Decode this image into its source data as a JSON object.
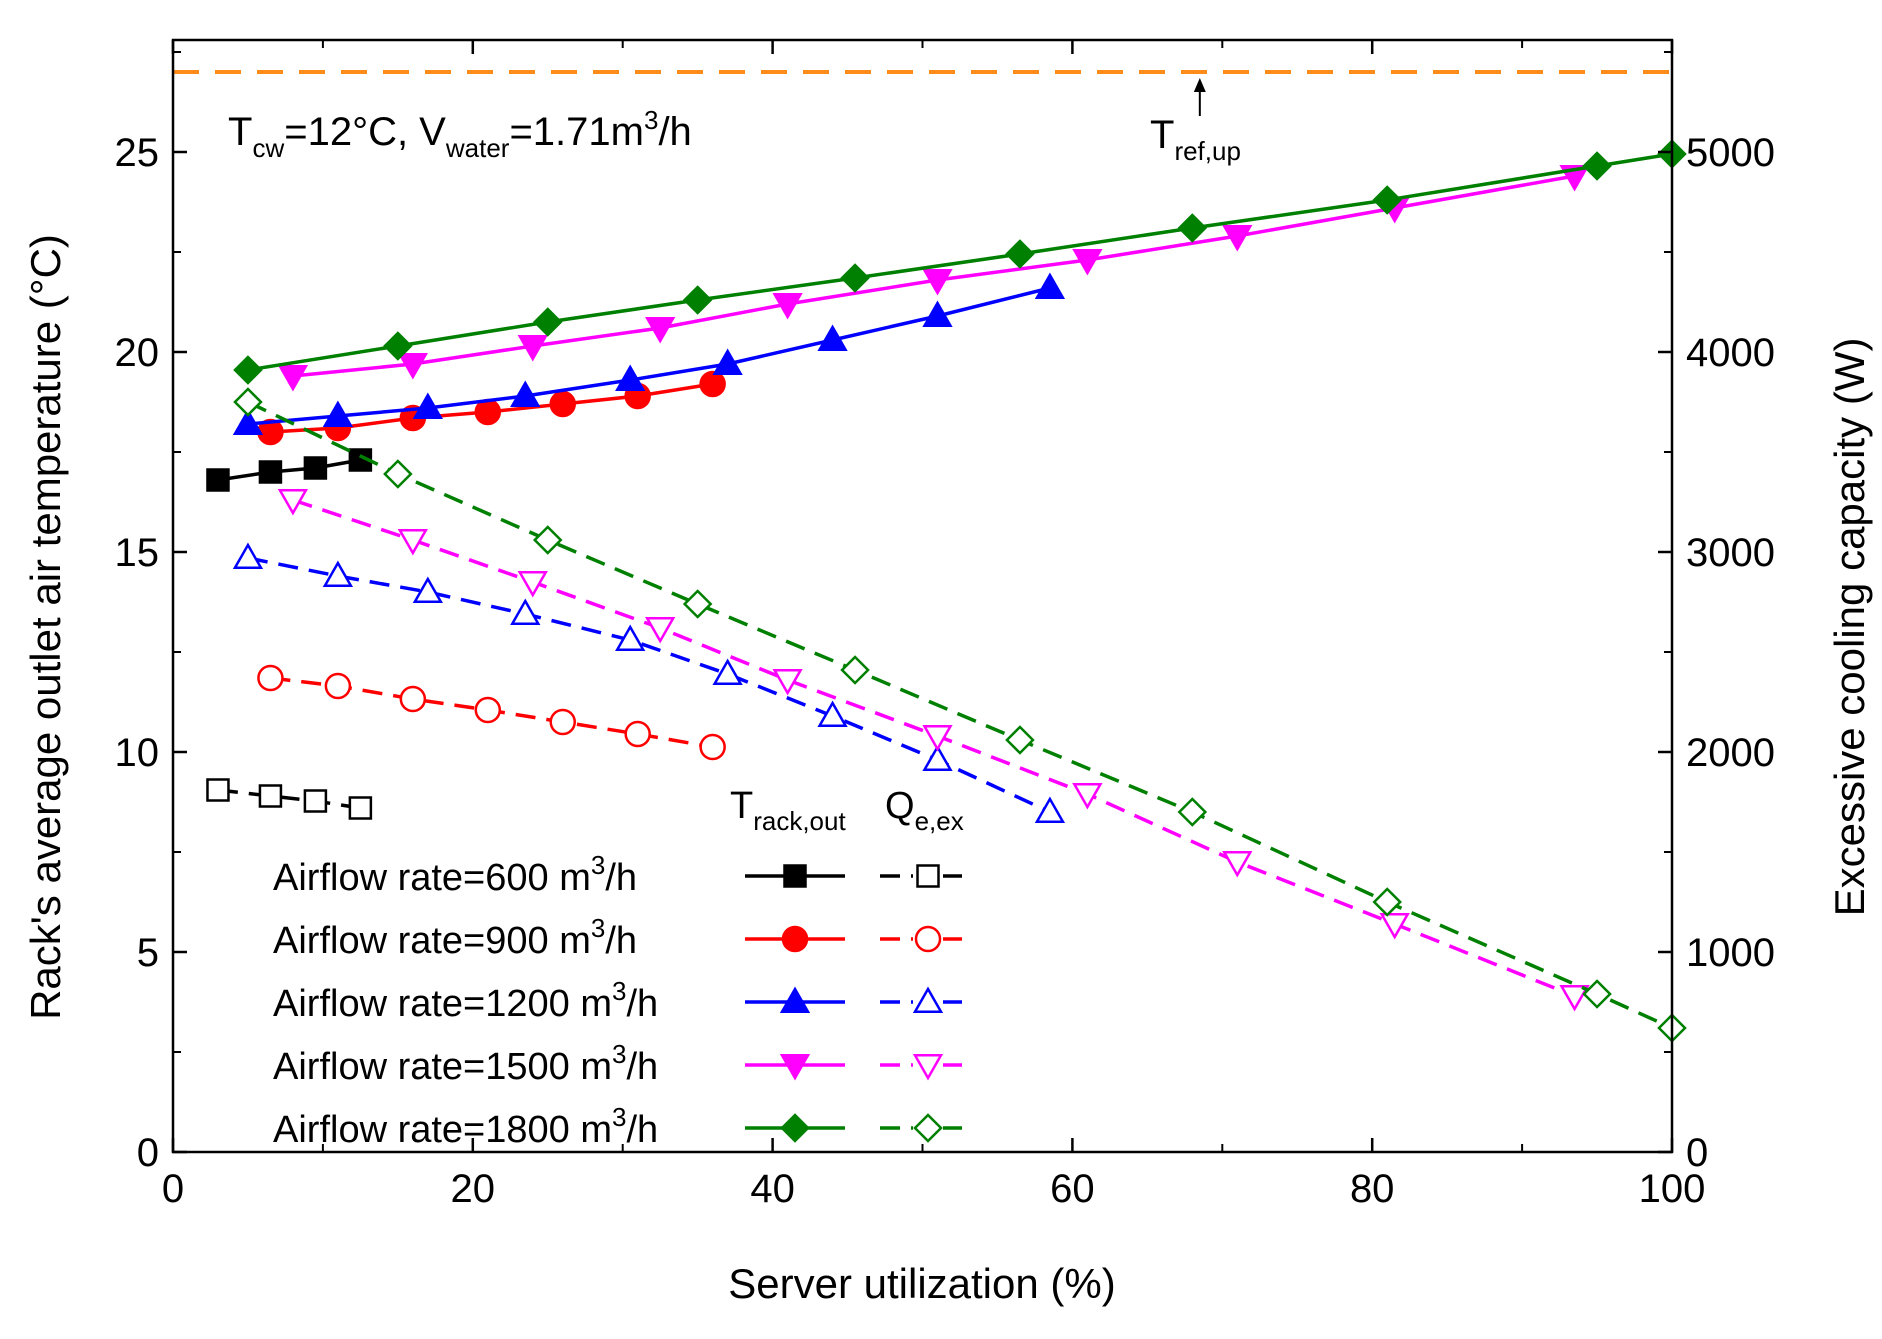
{
  "chart_data": {
    "type": "line",
    "xlabel": "Server utilization (%)",
    "ylabel": "Rack's average outlet  air temperature (°C)",
    "y2label": "Excessive cooling capacity (W)",
    "xlim": [
      0,
      100
    ],
    "ylim": [
      0,
      27.8
    ],
    "y2lim": [
      0,
      5560
    ],
    "xticks": [
      "0",
      "20",
      "40",
      "60",
      "80",
      "100"
    ],
    "yticks": [
      "0",
      "5",
      "10",
      "15",
      "20",
      "25"
    ],
    "y2ticks": [
      "0",
      "1000",
      "2000",
      "3000",
      "4000",
      "5000"
    ],
    "conditions": {
      "t": "T",
      "t_sub": "cw",
      "t_val": "=12°C, V",
      "v_sub": "water",
      "v_val": "=1.71m",
      "v_sup": "3",
      "v_unit": "/h"
    },
    "reference_line": {
      "value": 27,
      "color": "#FF8C1A",
      "label": "T",
      "label_sub": "ref,up",
      "arrow_x": 68.5
    },
    "legend_headers": {
      "t": "T",
      "t_sub": "rack,out",
      "q": "Q",
      "q_sub": "e,ex"
    },
    "legend_label_prefix": "Airflow rate=",
    "legend_label_suffix_sup": "3",
    "legend_label_suffix_end": "/h",
    "series": [
      {
        "name": "Airflow rate=600 m3/h",
        "airflow": "600 m",
        "color": "#000000",
        "marker": "square",
        "temperature": {
          "x": [
            3,
            6.5,
            9.5,
            12.5
          ],
          "y": [
            16.8,
            17.0,
            17.1,
            17.3
          ]
        },
        "cooling": {
          "x": [
            3,
            6.5,
            9.5,
            12.5
          ],
          "y": [
            1810,
            1780,
            1755,
            1720
          ]
        }
      },
      {
        "name": "Airflow rate=900 m3/h",
        "airflow": "900 m",
        "color": "#FF0000",
        "marker": "circle",
        "temperature": {
          "x": [
            6.5,
            11,
            16,
            21,
            26,
            31,
            36
          ],
          "y": [
            18.0,
            18.1,
            18.35,
            18.5,
            18.7,
            18.9,
            19.2
          ]
        },
        "cooling": {
          "x": [
            6.5,
            11,
            16,
            21,
            26,
            31,
            36
          ],
          "y": [
            2370,
            2330,
            2265,
            2210,
            2150,
            2090,
            2025
          ]
        }
      },
      {
        "name": "Airflow rate=1200 m3/h",
        "airflow": "1200 m",
        "color": "#0000FF",
        "marker": "triangle-up",
        "temperature": {
          "x": [
            5,
            11,
            17,
            23.5,
            30.5,
            37,
            44,
            51,
            58.5
          ],
          "y": [
            18.2,
            18.4,
            18.6,
            18.9,
            19.3,
            19.7,
            20.3,
            20.9,
            21.6
          ]
        },
        "cooling": {
          "x": [
            5,
            11,
            17,
            23.5,
            30.5,
            37,
            44,
            51,
            58.5
          ],
          "y": [
            2970,
            2880,
            2800,
            2690,
            2560,
            2390,
            2180,
            1960,
            1700
          ]
        }
      },
      {
        "name": "Airflow rate=1500 m3/h",
        "airflow": "1500 m",
        "color": "#FF00FF",
        "marker": "triangle-down",
        "temperature": {
          "x": [
            8,
            16,
            24,
            32.5,
            41,
            51,
            61,
            71,
            81.5,
            93.5
          ],
          "y": [
            19.4,
            19.7,
            20.15,
            20.6,
            21.2,
            21.8,
            22.3,
            22.9,
            23.6,
            24.4
          ]
        },
        "cooling": {
          "x": [
            8,
            16,
            24,
            32.5,
            41,
            51,
            61,
            71,
            81.5,
            93.5
          ],
          "y": [
            3260,
            3060,
            2850,
            2620,
            2360,
            2080,
            1790,
            1450,
            1140,
            780
          ]
        }
      },
      {
        "name": "Airflow rate=1800 m3/h",
        "airflow": "1800 m",
        "color": "#008000",
        "marker": "diamond",
        "temperature": {
          "x": [
            5,
            15,
            25,
            35,
            45.5,
            56.5,
            68,
            81,
            95,
            100
          ],
          "y": [
            19.55,
            20.15,
            20.75,
            21.3,
            21.85,
            22.45,
            23.1,
            23.8,
            24.65,
            24.95
          ]
        },
        "cooling": {
          "x": [
            5,
            15,
            25,
            35,
            45.5,
            56.5,
            68,
            81,
            95,
            100
          ],
          "y": [
            3750,
            3390,
            3060,
            2740,
            2410,
            2060,
            1700,
            1250,
            790,
            620
          ]
        }
      }
    ]
  }
}
